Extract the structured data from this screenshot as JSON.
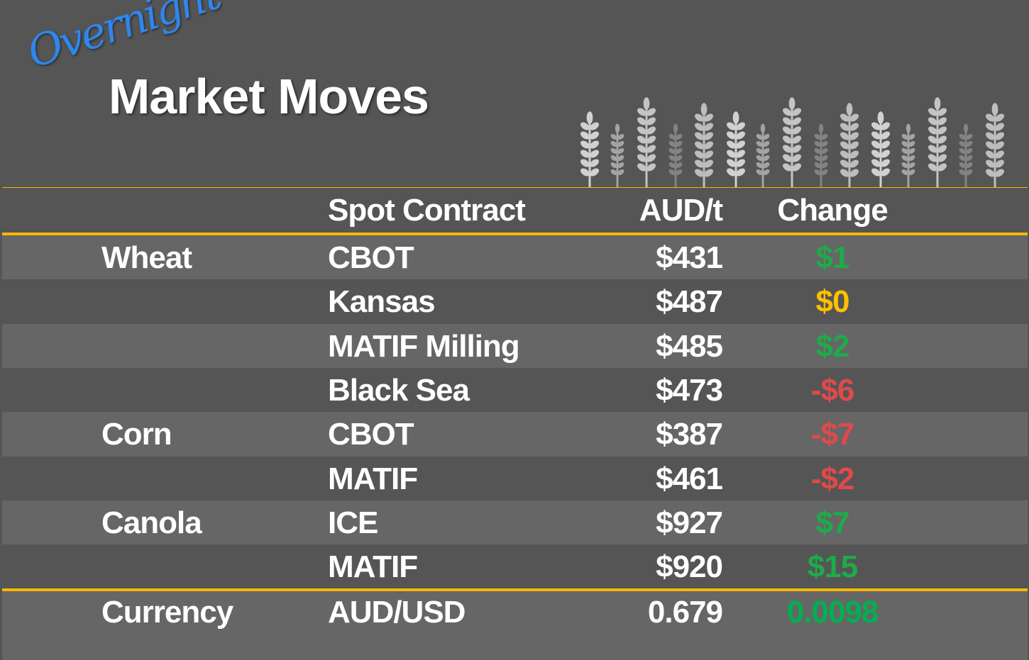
{
  "header": {
    "script_title": "Overnight",
    "title": "Market Moves",
    "wheat_icon": "wheat-stalk-icon"
  },
  "colors": {
    "accent_line": "#f5b800",
    "up": "#1faa4a",
    "flat": "#ffc000",
    "down": "#e04a4a",
    "currency_up": "#00b050"
  },
  "columns": {
    "contract": "Spot Contract",
    "price": "AUD/t",
    "change": "Change"
  },
  "rows": [
    {
      "commodity": "Wheat",
      "contract": "CBOT",
      "price": "$431",
      "change": "$1",
      "dir": "up"
    },
    {
      "commodity": "",
      "contract": "Kansas",
      "price": "$487",
      "change": "$0",
      "dir": "flat"
    },
    {
      "commodity": "",
      "contract": "MATIF Milling",
      "price": "$485",
      "change": "$2",
      "dir": "up"
    },
    {
      "commodity": "",
      "contract": "Black Sea",
      "price": "$473",
      "change": "-$6",
      "dir": "down"
    },
    {
      "commodity": "Corn",
      "contract": "CBOT",
      "price": "$387",
      "change": "-$7",
      "dir": "down"
    },
    {
      "commodity": "",
      "contract": "MATIF",
      "price": "$461",
      "change": "-$2",
      "dir": "down"
    },
    {
      "commodity": "Canola",
      "contract": "ICE",
      "price": "$927",
      "change": "$7",
      "dir": "up"
    },
    {
      "commodity": "",
      "contract": "MATIF",
      "price": "$920",
      "change": "$15",
      "dir": "up"
    }
  ],
  "currency": {
    "label": "Currency",
    "pair": "AUD/USD",
    "rate": "0.679",
    "change": "0.0098",
    "dir": "currency_up"
  }
}
